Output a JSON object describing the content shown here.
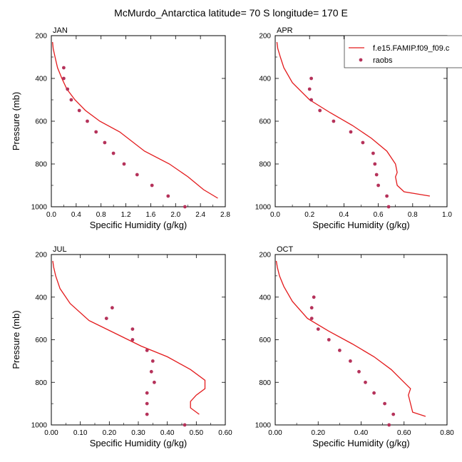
{
  "title": "McMurdo_Antarctica  latitude= 70 S longitude= 170 E",
  "legend": {
    "model_label": "f.e15.FAMIP.f09_f09.c",
    "obs_label": "raobs",
    "model_color": "#e31a1c",
    "obs_color": "#b5325a"
  },
  "chart_data": [
    {
      "type": "line",
      "panel": "JAN",
      "xlabel": "Specific Humidity (g/kg)",
      "ylabel": "Pressure (mb)",
      "xlim": [
        0,
        2.8
      ],
      "ylim": [
        1000,
        200
      ],
      "xticks": [
        "0.0",
        "0.4",
        "0.8",
        "1.2",
        "1.6",
        "2.0",
        "2.4",
        "2.8"
      ],
      "yticks": [
        "200",
        "400",
        "600",
        "800",
        "1000"
      ],
      "series": [
        {
          "name": "f.e15.FAMIP.f09_f09.c",
          "kind": "line",
          "x": [
            0.02,
            0.03,
            0.06,
            0.1,
            0.17,
            0.25,
            0.38,
            0.55,
            0.78,
            1.1,
            1.5,
            1.9,
            2.2,
            2.45,
            2.68
          ],
          "y": [
            230,
            260,
            300,
            350,
            400,
            450,
            500,
            550,
            600,
            650,
            740,
            800,
            860,
            920,
            960
          ]
        },
        {
          "name": "raobs",
          "kind": "scatter",
          "x": [
            0.2,
            0.2,
            0.26,
            0.32,
            0.45,
            0.58,
            0.72,
            0.86,
            1.0,
            1.17,
            1.38,
            1.62,
            1.88,
            2.15
          ],
          "y": [
            350,
            400,
            450,
            500,
            550,
            600,
            650,
            700,
            750,
            800,
            850,
            900,
            950,
            1000
          ]
        }
      ]
    },
    {
      "type": "line",
      "panel": "APR",
      "xlabel": "Specific Humidity (g/kg)",
      "ylabel": "",
      "xlim": [
        0,
        1.0
      ],
      "ylim": [
        1000,
        200
      ],
      "xticks": [
        "0.0",
        "0.2",
        "0.4",
        "0.6",
        "0.8",
        "1.0"
      ],
      "yticks": [
        "200",
        "400",
        "600",
        "800",
        "1000"
      ],
      "series": [
        {
          "name": "f.e15.FAMIP.f09_f09.c",
          "kind": "line",
          "x": [
            0.01,
            0.015,
            0.03,
            0.05,
            0.1,
            0.2,
            0.32,
            0.45,
            0.56,
            0.65,
            0.7,
            0.71,
            0.7,
            0.71,
            0.75,
            0.9
          ],
          "y": [
            230,
            260,
            300,
            350,
            420,
            500,
            560,
            620,
            680,
            740,
            800,
            840,
            860,
            900,
            930,
            950
          ]
        },
        {
          "name": "raobs",
          "kind": "scatter",
          "x": [
            0.21,
            0.2,
            0.21,
            0.26,
            0.34,
            0.44,
            0.51,
            0.57,
            0.58,
            0.59,
            0.6,
            0.65,
            0.66
          ],
          "y": [
            400,
            450,
            500,
            550,
            600,
            650,
            700,
            750,
            800,
            850,
            900,
            950,
            1000
          ]
        }
      ]
    },
    {
      "type": "line",
      "panel": "JUL",
      "xlabel": "Specific Humidity (g/kg)",
      "ylabel": "Pressure (mb)",
      "xlim": [
        0,
        0.6
      ],
      "ylim": [
        1000,
        200
      ],
      "xticks": [
        "0.00",
        "0.10",
        "0.20",
        "0.30",
        "0.40",
        "0.50",
        "0.60"
      ],
      "yticks": [
        "200",
        "400",
        "600",
        "800",
        "1000"
      ],
      "series": [
        {
          "name": "f.e15.FAMIP.f09_f09.c",
          "kind": "line",
          "x": [
            0.005,
            0.008,
            0.015,
            0.03,
            0.065,
            0.13,
            0.22,
            0.31,
            0.4,
            0.48,
            0.53,
            0.53,
            0.5,
            0.48,
            0.48,
            0.51
          ],
          "y": [
            230,
            260,
            300,
            360,
            430,
            510,
            570,
            630,
            680,
            740,
            790,
            830,
            860,
            890,
            920,
            950
          ]
        },
        {
          "name": "raobs",
          "kind": "scatter",
          "x": [
            0.21,
            0.19,
            0.28,
            0.28,
            0.33,
            0.35,
            0.345,
            0.355,
            0.33,
            0.33,
            0.33,
            0.46
          ],
          "y": [
            450,
            500,
            550,
            600,
            650,
            700,
            750,
            800,
            850,
            900,
            950,
            1000
          ]
        }
      ]
    },
    {
      "type": "line",
      "panel": "OCT",
      "xlabel": "Specific Humidity (g/kg)",
      "ylabel": "",
      "xlim": [
        0,
        0.8
      ],
      "ylim": [
        1000,
        200
      ],
      "xticks": [
        "0.00",
        "0.20",
        "0.40",
        "0.60",
        "0.80"
      ],
      "yticks": [
        "200",
        "400",
        "600",
        "800",
        "1000"
      ],
      "series": [
        {
          "name": "f.e15.FAMIP.f09_f09.c",
          "kind": "line",
          "x": [
            0.005,
            0.01,
            0.02,
            0.04,
            0.08,
            0.15,
            0.25,
            0.36,
            0.46,
            0.54,
            0.6,
            0.63,
            0.62,
            0.63,
            0.64,
            0.7
          ],
          "y": [
            230,
            260,
            300,
            350,
            420,
            500,
            560,
            620,
            680,
            740,
            800,
            830,
            860,
            900,
            940,
            960
          ]
        },
        {
          "name": "raobs",
          "kind": "scatter",
          "x": [
            0.18,
            0.17,
            0.17,
            0.2,
            0.25,
            0.3,
            0.35,
            0.39,
            0.42,
            0.46,
            0.51,
            0.55,
            0.53
          ],
          "y": [
            400,
            450,
            500,
            550,
            600,
            650,
            700,
            750,
            800,
            850,
            900,
            950,
            1000
          ]
        }
      ]
    }
  ]
}
